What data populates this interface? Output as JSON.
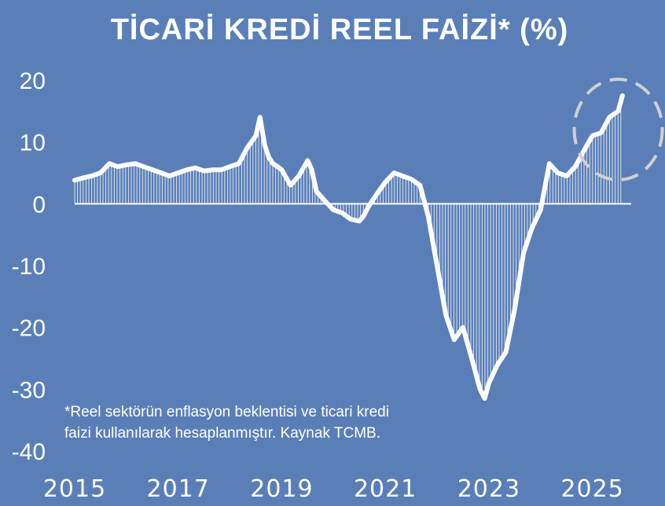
{
  "chart_data": {
    "type": "area",
    "title": "TİCARİ KREDİ REEL FAİZİ* (%)",
    "footnote_lines": [
      "*Reel sektörün enflasyon beklentisi ve ticari kredi",
      "faizi kullanılarak hesaplanmıştır. Kaynak TCMB."
    ],
    "ylim": [
      -40,
      20
    ],
    "yticks": [
      "20",
      "10",
      "0",
      "-10",
      "-20",
      "-30",
      "-40"
    ],
    "ytick_values": [
      20,
      10,
      0,
      -10,
      -20,
      -30,
      -40
    ],
    "xlim": [
      2015.0,
      2025.75
    ],
    "xticks": [
      "2015",
      "2017",
      "2019",
      "2021",
      "2023",
      "2025"
    ],
    "xtick_values": [
      2015,
      2017,
      2019,
      2021,
      2023,
      2025
    ],
    "grid": false,
    "colors": {
      "background": "#5a7fb8",
      "line": "#ffffff",
      "fill_lines": "#ffffff",
      "highlight_circle": "#d0d0d0"
    },
    "highlight_circle_center": [
      2025.5,
      12
    ],
    "series": [
      {
        "x": [
          2015.0,
          2015.17,
          2015.33,
          2015.5,
          2015.67,
          2015.83,
          2016.0,
          2016.17,
          2016.33,
          2016.5,
          2016.67,
          2016.83,
          2017.0,
          2017.17,
          2017.33,
          2017.5,
          2017.67,
          2017.83,
          2018.0,
          2018.17,
          2018.33,
          2018.5,
          2018.58,
          2018.67,
          2018.75,
          2018.83,
          2018.92,
          2019.0,
          2019.17,
          2019.33,
          2019.5,
          2019.58,
          2019.67,
          2019.83,
          2020.0,
          2020.17,
          2020.33,
          2020.5,
          2020.58,
          2020.67,
          2020.83,
          2021.0,
          2021.17,
          2021.33,
          2021.5,
          2021.67,
          2021.83,
          2022.0,
          2022.17,
          2022.33,
          2022.5,
          2022.67,
          2022.83,
          2022.92,
          2023.0,
          2023.17,
          2023.33,
          2023.5,
          2023.67,
          2023.83,
          2024.0,
          2024.17,
          2024.33,
          2024.5,
          2024.67,
          2024.83,
          2025.0,
          2025.17,
          2025.33,
          2025.5,
          2025.58
        ],
        "y": [
          3.8,
          4.2,
          4.5,
          5.0,
          6.5,
          6.0,
          6.3,
          6.5,
          6.0,
          5.5,
          5.0,
          4.5,
          5.0,
          5.5,
          5.8,
          5.3,
          5.5,
          5.5,
          6.0,
          6.5,
          9.0,
          11.0,
          14.0,
          9.5,
          7.5,
          6.5,
          6.0,
          5.5,
          3.0,
          4.5,
          7.0,
          5.5,
          2.0,
          0.5,
          -1.0,
          -1.5,
          -2.5,
          -2.8,
          -2.0,
          -0.5,
          1.5,
          3.5,
          5.0,
          4.5,
          4.0,
          3.0,
          -2.0,
          -10.0,
          -18.0,
          -22.0,
          -20.0,
          -25.0,
          -30.0,
          -31.5,
          -29.0,
          -26.0,
          -24.0,
          -17.0,
          -8.0,
          -4.0,
          -1.0,
          6.5,
          5.0,
          4.5,
          6.0,
          8.5,
          11.0,
          11.5,
          14.0,
          15.0,
          17.5
        ]
      }
    ]
  }
}
